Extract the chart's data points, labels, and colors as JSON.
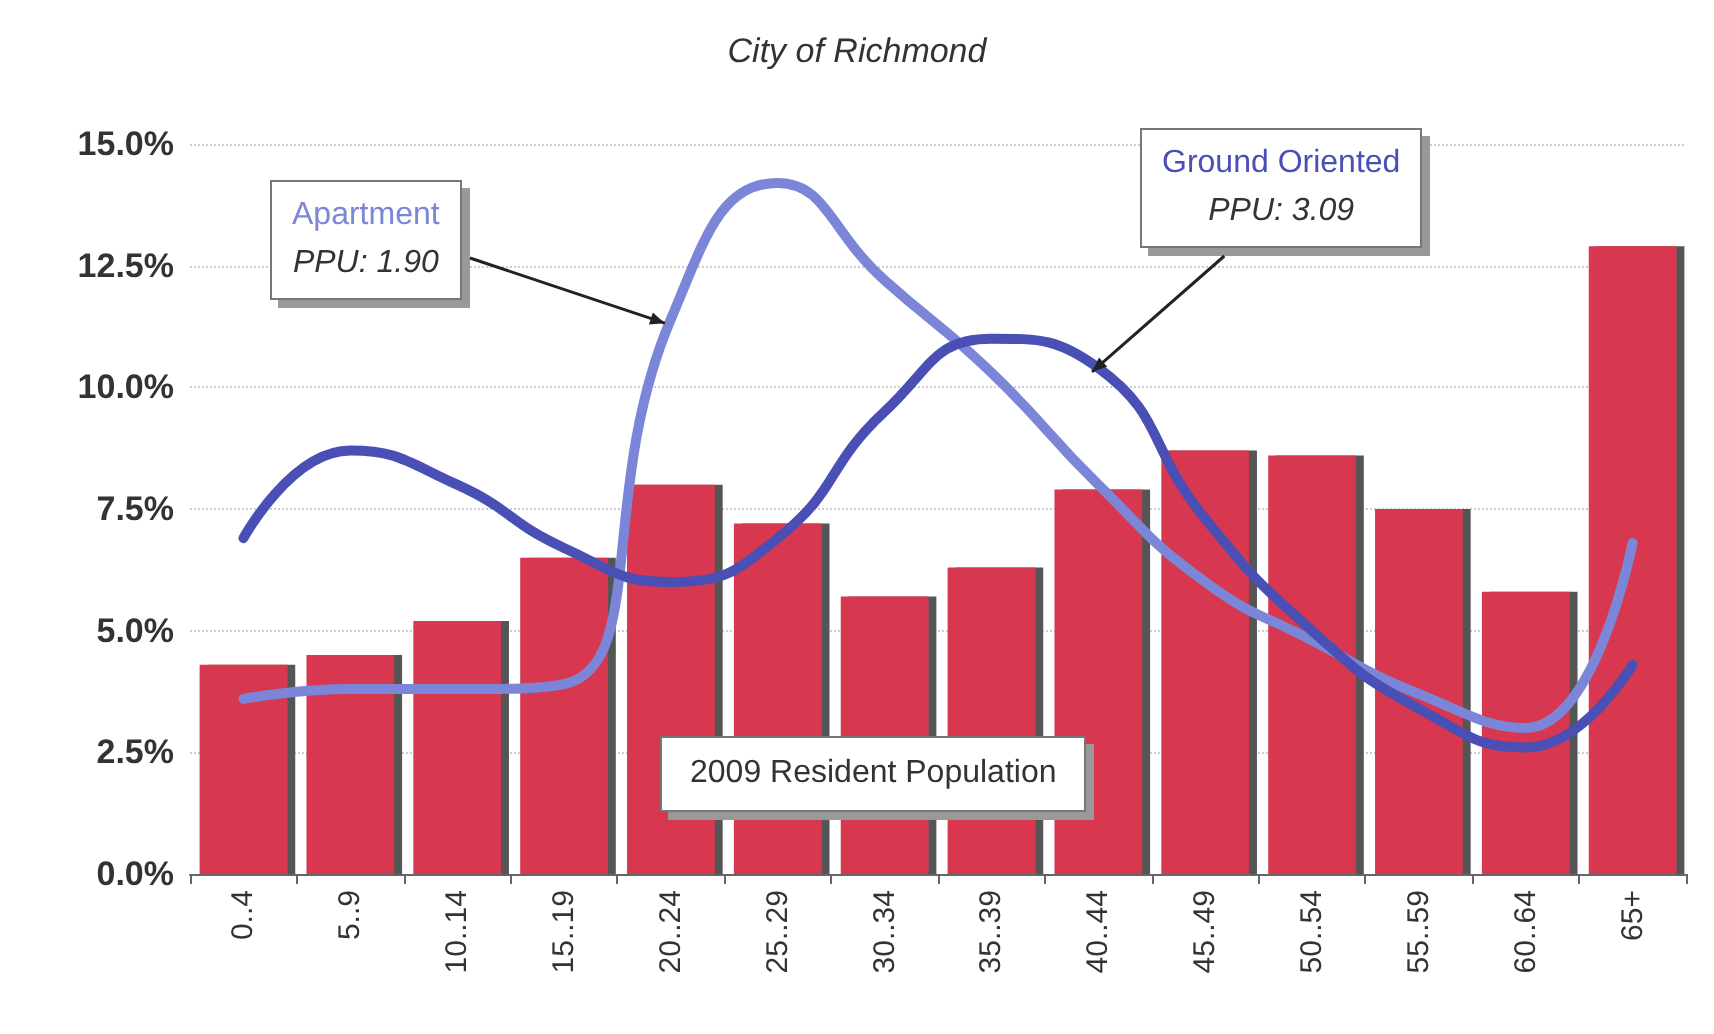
{
  "chart_data": {
    "type": "bar",
    "title": "City of Richmond",
    "categories": [
      "0..4",
      "5..9",
      "10..14",
      "15..19",
      "20..24",
      "25..29",
      "30..34",
      "35..39",
      "40..44",
      "45..49",
      "50..54",
      "55..59",
      "60..64",
      "65+"
    ],
    "series": [
      {
        "name": "2009 Resident Population",
        "color": "#d7374f",
        "values": [
          4.3,
          4.5,
          5.2,
          6.5,
          8.0,
          7.2,
          5.7,
          6.3,
          7.9,
          8.7,
          8.6,
          7.5,
          5.8,
          12.9
        ]
      },
      {
        "name": "Apartment",
        "type": "line",
        "color": "#7b86d8",
        "values": [
          3.6,
          3.8,
          3.8,
          3.9,
          11.4,
          14.2,
          12.2,
          10.3,
          8.0,
          6.0,
          4.8,
          3.7,
          3.0,
          6.8
        ]
      },
      {
        "name": "Ground Oriented",
        "type": "line",
        "color": "#4a4fb5",
        "values": [
          6.9,
          8.7,
          8.0,
          6.7,
          6.0,
          6.9,
          9.5,
          11.0,
          10.4,
          7.3,
          5.0,
          3.4,
          2.6,
          4.3
        ]
      }
    ],
    "annotations": [
      {
        "text": "PPU: 1.90",
        "x": "20..24",
        "y": 11.4
      },
      {
        "text": "PPU: 3.09",
        "x": "40..44",
        "y": 10.4
      }
    ],
    "ylim": [
      0,
      15
    ],
    "yticks": [
      {
        "value": 0,
        "label": "0.0%"
      },
      {
        "value": 2.5,
        "label": "2.5%"
      },
      {
        "value": 5,
        "label": "5.0%"
      },
      {
        "value": 7.5,
        "label": "7.5%"
      },
      {
        "value": 10,
        "label": "10.0%"
      },
      {
        "value": 12.5,
        "label": "12.5%"
      },
      {
        "value": 15,
        "label": "15.0%"
      }
    ],
    "grid": "y",
    "legend": false,
    "marker": "none",
    "line_style": "solid"
  }
}
